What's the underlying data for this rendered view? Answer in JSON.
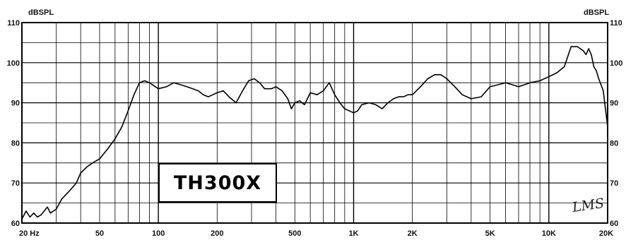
{
  "chart_data": {
    "type": "line",
    "title": "",
    "y_unit_left": "dBSPL",
    "y_unit_right": "dBSPL",
    "xscale": "log",
    "xlim": [
      20,
      20000
    ],
    "ylim": [
      60,
      110
    ],
    "grid": true,
    "x_ticks": [
      {
        "value": 20,
        "label": "20  Hz"
      },
      {
        "value": 50,
        "label": "50"
      },
      {
        "value": 100,
        "label": "100"
      },
      {
        "value": 200,
        "label": "200"
      },
      {
        "value": 500,
        "label": "500"
      },
      {
        "value": 1000,
        "label": "1K"
      },
      {
        "value": 2000,
        "label": "2K"
      },
      {
        "value": 5000,
        "label": "5K"
      },
      {
        "value": 10000,
        "label": "10K"
      },
      {
        "value": 20000,
        "label": "20K"
      }
    ],
    "y_ticks": [
      60,
      70,
      80,
      90,
      100,
      110
    ],
    "series": [
      {
        "name": "",
        "x": [
          20,
          21,
          22,
          23,
          24,
          25,
          26,
          27,
          28,
          30,
          32,
          35,
          38,
          40,
          43,
          46,
          50,
          55,
          60,
          65,
          70,
          75,
          80,
          85,
          90,
          100,
          110,
          120,
          130,
          140,
          150,
          160,
          170,
          180,
          190,
          200,
          215,
          230,
          250,
          270,
          290,
          310,
          330,
          350,
          380,
          400,
          430,
          460,
          480,
          500,
          530,
          560,
          600,
          650,
          700,
          750,
          800,
          850,
          900,
          1000,
          1050,
          1100,
          1200,
          1300,
          1400,
          1500,
          1600,
          1700,
          1800,
          1900,
          2000,
          2200,
          2400,
          2600,
          2800,
          3000,
          3300,
          3600,
          4000,
          4500,
          5000,
          5500,
          6000,
          6500,
          7000,
          7500,
          8000,
          9000,
          10000,
          11000,
          12000,
          13000,
          14000,
          15000,
          15500,
          16000,
          16500,
          17000,
          17500,
          18000,
          19000,
          20000
        ],
        "y": [
          61,
          63,
          61.5,
          62.5,
          61.5,
          62,
          63,
          64,
          62.5,
          63.5,
          66,
          68,
          70,
          72.5,
          74,
          75,
          76,
          78.5,
          81,
          84,
          88,
          92,
          95,
          95.5,
          95,
          93.5,
          94,
          95,
          94.5,
          94,
          93.5,
          93,
          92,
          91.5,
          92,
          92.5,
          93,
          91.5,
          90,
          93,
          95.5,
          96,
          95,
          93.5,
          93.5,
          94,
          93,
          91,
          88.5,
          90,
          90.5,
          89.5,
          92.5,
          92,
          93,
          95,
          92,
          90,
          88.5,
          87.5,
          88,
          89.5,
          90,
          89.5,
          88.5,
          90,
          91,
          91.5,
          91.5,
          92,
          92,
          94,
          96,
          97,
          97,
          96,
          94,
          92,
          91,
          91.5,
          94,
          94.5,
          95,
          94.5,
          94,
          94.5,
          95,
          95.5,
          96.5,
          97.5,
          99,
          104,
          104,
          103,
          102,
          103.5,
          102,
          99,
          98,
          96,
          93,
          84
        ]
      }
    ]
  },
  "labels": {
    "model": "TH300X",
    "brand": "LMS"
  }
}
